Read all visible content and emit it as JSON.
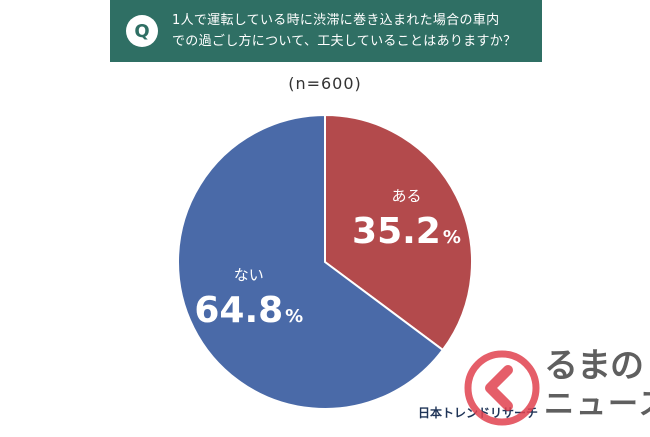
{
  "question": {
    "badge": "Q",
    "line1": "1人で運転している時に渋滞に巻き込まれた場合の車内",
    "line2": "での過ごし方について、工夫していることはありますか？"
  },
  "sample_size": "(n=600)",
  "chart_data": {
    "type": "pie",
    "slices": [
      {
        "label": "ある",
        "value": 35.2,
        "display": "35.2",
        "unit": "%",
        "color": "#b34a4c"
      },
      {
        "label": "ない",
        "value": 64.8,
        "display": "64.8",
        "unit": "%",
        "color": "#4a6aa8"
      }
    ]
  },
  "source": "日本トレンドリサーチ",
  "watermark": {
    "line1": "るまの",
    "line2": "ニュース",
    "color": "#e0424f"
  }
}
